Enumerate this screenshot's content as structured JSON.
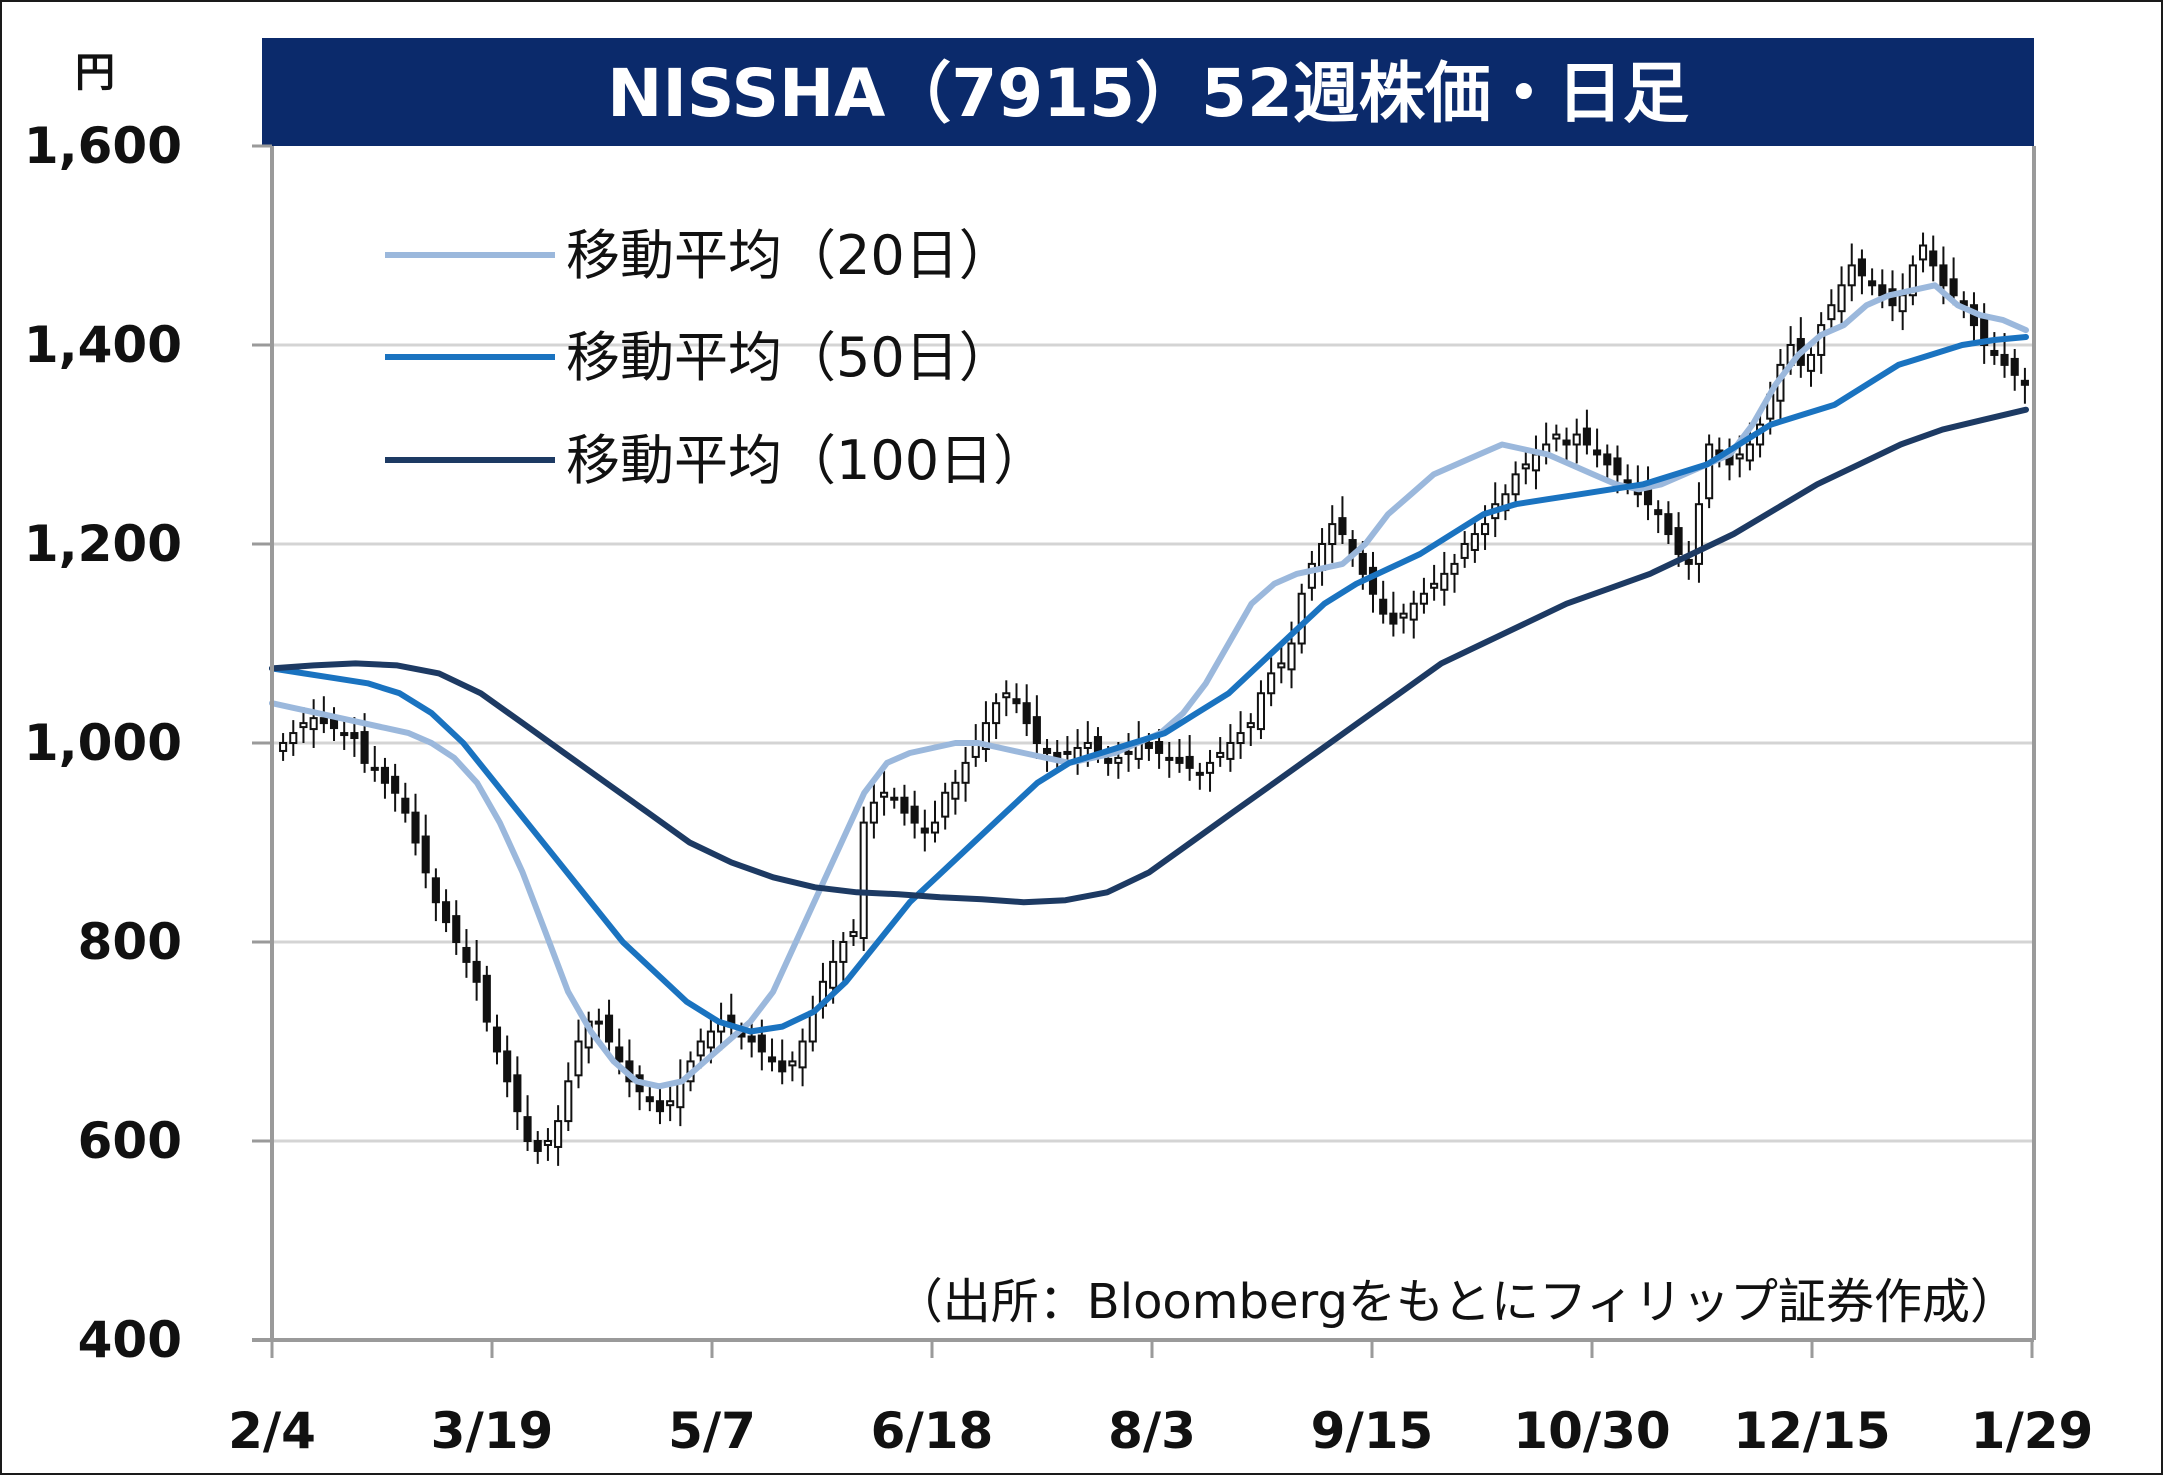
{
  "chart_data": {
    "type": "candlestick",
    "title": "NISSHA（7915）52週株価・日足",
    "yunit": "円",
    "ylim": [
      400,
      1600
    ],
    "yticks": [
      "1,600",
      "1,400",
      "1,200",
      "1,000",
      "800",
      "600",
      "400"
    ],
    "xticks": [
      "2/4",
      "3/19",
      "5/7",
      "6/18",
      "8/3",
      "9/15",
      "10/30",
      "12/15",
      "1/29"
    ],
    "source": "（出所：Bloombergをもとにフィリップ証券作成）",
    "colors": {
      "title_bg": "#0b2a6b",
      "grid": "#d4d4d4",
      "candle": "#111111",
      "ma20": "#9bb8dc",
      "ma50": "#1a73c0",
      "ma100": "#1d3a63"
    },
    "price_close": [
      1000,
      1010,
      1020,
      1025,
      1020,
      1015,
      1010,
      1005,
      980,
      975,
      960,
      950,
      930,
      900,
      870,
      840,
      820,
      800,
      780,
      760,
      720,
      690,
      660,
      630,
      600,
      590,
      600,
      620,
      660,
      700,
      720,
      720,
      700,
      680,
      660,
      650,
      640,
      630,
      640,
      660,
      680,
      700,
      710,
      720,
      715,
      705,
      700,
      690,
      680,
      670,
      680,
      700,
      730,
      760,
      780,
      800,
      810,
      920,
      940,
      950,
      945,
      930,
      920,
      910,
      920,
      950,
      960,
      980,
      1000,
      1020,
      1040,
      1050,
      1040,
      1020,
      1000,
      990,
      985,
      990,
      995,
      1000,
      990,
      980,
      985,
      990,
      1000,
      995,
      990,
      985,
      980,
      975,
      970,
      980,
      990,
      1000,
      1010,
      1020,
      1050,
      1070,
      1080,
      1100,
      1150,
      1180,
      1200,
      1220,
      1210,
      1190,
      1170,
      1150,
      1130,
      1120,
      1130,
      1140,
      1150,
      1160,
      1170,
      1180,
      1200,
      1210,
      1220,
      1240,
      1250,
      1270,
      1280,
      1290,
      1300,
      1310,
      1300,
      1310,
      1300,
      1290,
      1280,
      1270,
      1260,
      1250,
      1240,
      1230,
      1210,
      1190,
      1180,
      1240,
      1300,
      1290,
      1280,
      1290,
      1300,
      1320,
      1350,
      1380,
      1400,
      1380,
      1390,
      1420,
      1440,
      1460,
      1480,
      1470,
      1460,
      1450,
      1440,
      1450,
      1480,
      1500,
      1480,
      1460,
      1450,
      1440,
      1420,
      1400,
      1390,
      1380,
      1370,
      1360
    ],
    "series": [
      {
        "name": "移動平均（20日）",
        "values": [
          1040,
          1035,
          1030,
          1025,
          1020,
          1015,
          1010,
          1000,
          985,
          960,
          920,
          870,
          810,
          750,
          710,
          680,
          660,
          655,
          660,
          680,
          700,
          720,
          750,
          800,
          850,
          900,
          950,
          980,
          990,
          995,
          1000,
          1000,
          995,
          990,
          985,
          980,
          985,
          990,
          1000,
          1010,
          1030,
          1060,
          1100,
          1140,
          1160,
          1170,
          1175,
          1180,
          1200,
          1230,
          1250,
          1270,
          1280,
          1290,
          1300,
          1295,
          1290,
          1280,
          1270,
          1260,
          1255,
          1260,
          1270,
          1280,
          1290,
          1320,
          1360,
          1390,
          1410,
          1420,
          1440,
          1450,
          1455,
          1460,
          1440,
          1430,
          1425,
          1415
        ]
      },
      {
        "name": "移動平均（50日）",
        "values": [
          1075,
          1070,
          1065,
          1060,
          1050,
          1030,
          1000,
          960,
          920,
          880,
          840,
          800,
          770,
          740,
          720,
          710,
          715,
          730,
          760,
          800,
          840,
          870,
          900,
          930,
          960,
          980,
          990,
          1000,
          1010,
          1030,
          1050,
          1080,
          1110,
          1140,
          1160,
          1175,
          1190,
          1210,
          1230,
          1240,
          1245,
          1250,
          1255,
          1260,
          1270,
          1280,
          1300,
          1320,
          1330,
          1340,
          1360,
          1380,
          1390,
          1400,
          1405,
          1408
        ]
      },
      {
        "name": "移動平均（100日）",
        "values": [
          1075,
          1078,
          1080,
          1078,
          1070,
          1050,
          1020,
          990,
          960,
          930,
          900,
          880,
          865,
          855,
          850,
          848,
          845,
          843,
          840,
          842,
          850,
          870,
          900,
          930,
          960,
          990,
          1020,
          1050,
          1080,
          1100,
          1120,
          1140,
          1155,
          1170,
          1190,
          1210,
          1235,
          1260,
          1280,
          1300,
          1315,
          1325,
          1335
        ]
      }
    ]
  }
}
